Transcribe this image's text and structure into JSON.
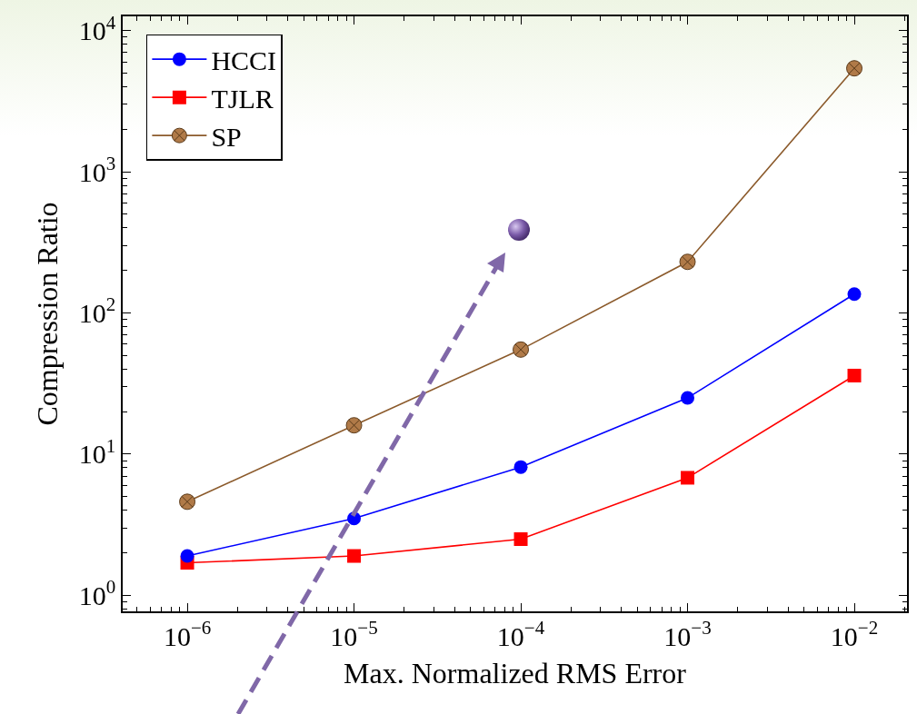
{
  "chart_data": {
    "type": "line",
    "xlabel": "Max. Normalized RMS Error",
    "ylabel": "Compression Ratio",
    "x": [
      1e-06,
      1e-05,
      0.0001,
      0.001,
      0.01
    ],
    "series": [
      {
        "name": "HCCI",
        "color": "#0000ff",
        "marker": "circle",
        "values": [
          1.9,
          3.5,
          8.1,
          25,
          136
        ]
      },
      {
        "name": "TJLR",
        "color": "#ff0000",
        "marker": "square",
        "values": [
          1.7,
          1.9,
          2.5,
          6.8,
          36
        ]
      },
      {
        "name": "SP",
        "color": "#8b5a2b",
        "marker": "cross",
        "values": [
          4.6,
          16,
          55,
          230,
          5400
        ]
      }
    ],
    "log": "xy",
    "xlim": [
      4.1e-07,
      0.0207
    ],
    "ylim": [
      0.77,
      12600
    ],
    "xticks": [
      {
        "value": 1e-06,
        "label": "10$^{−6}$"
      },
      {
        "value": 1e-05,
        "label": "10$^{−5}$"
      },
      {
        "value": 0.0001,
        "label": "10$^{−4}$"
      },
      {
        "value": 0.001,
        "label": "10$^{−3}$"
      },
      {
        "value": 0.01,
        "label": "10$^{−2}$"
      }
    ],
    "yticks": [
      {
        "value": 1,
        "label": "10$^{0}$"
      },
      {
        "value": 10,
        "label": "10$^{1}$"
      },
      {
        "value": 100,
        "label": "10$^{2}$"
      },
      {
        "value": 1000,
        "label": "10$^{3}$"
      },
      {
        "value": 10000,
        "label": "10$^{4}$"
      }
    ],
    "grid": false,
    "legend": "top left",
    "line_style": "solid"
  }
}
